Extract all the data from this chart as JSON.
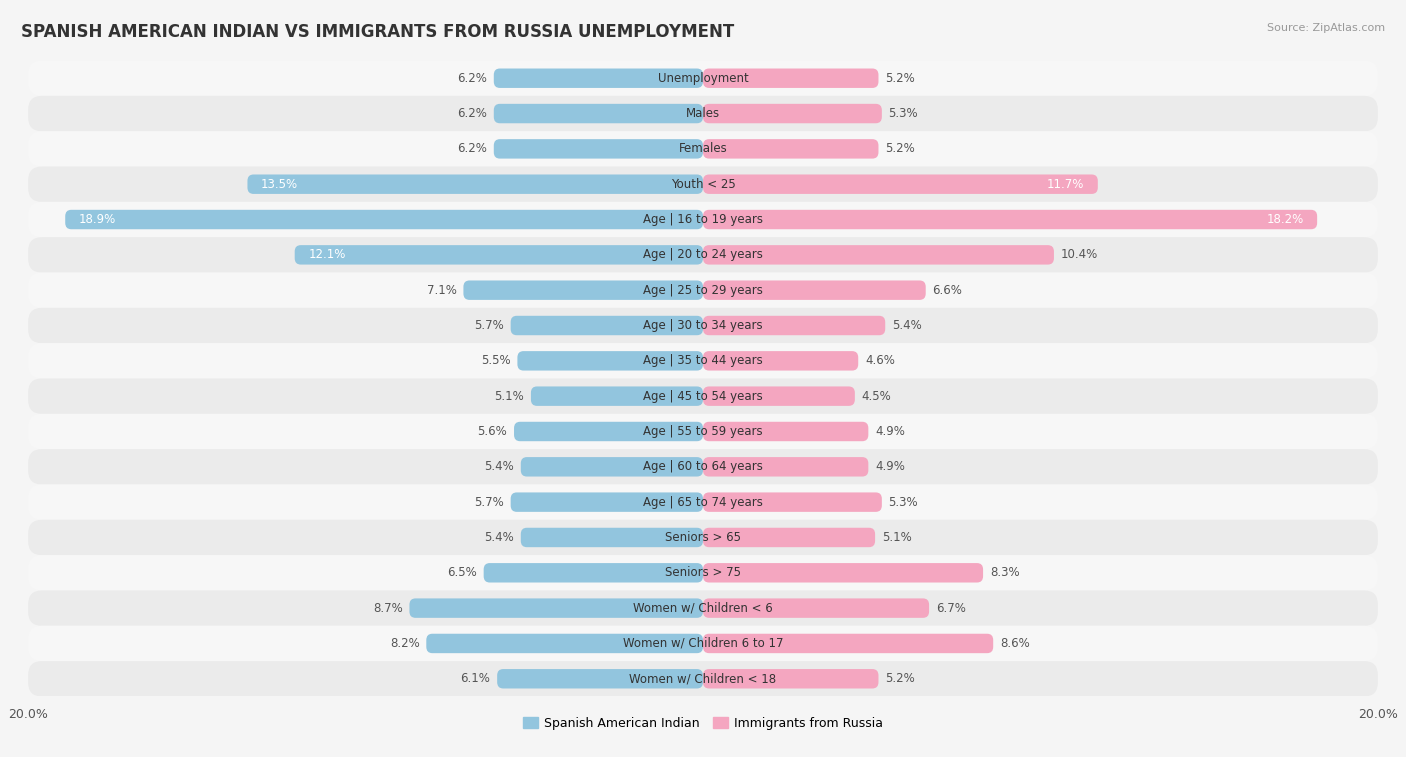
{
  "title": "SPANISH AMERICAN INDIAN VS IMMIGRANTS FROM RUSSIA UNEMPLOYMENT",
  "source": "Source: ZipAtlas.com",
  "categories": [
    "Unemployment",
    "Males",
    "Females",
    "Youth < 25",
    "Age | 16 to 19 years",
    "Age | 20 to 24 years",
    "Age | 25 to 29 years",
    "Age | 30 to 34 years",
    "Age | 35 to 44 years",
    "Age | 45 to 54 years",
    "Age | 55 to 59 years",
    "Age | 60 to 64 years",
    "Age | 65 to 74 years",
    "Seniors > 65",
    "Seniors > 75",
    "Women w/ Children < 6",
    "Women w/ Children 6 to 17",
    "Women w/ Children < 18"
  ],
  "left_values": [
    6.2,
    6.2,
    6.2,
    13.5,
    18.9,
    12.1,
    7.1,
    5.7,
    5.5,
    5.1,
    5.6,
    5.4,
    5.7,
    5.4,
    6.5,
    8.7,
    8.2,
    6.1
  ],
  "right_values": [
    5.2,
    5.3,
    5.2,
    11.7,
    18.2,
    10.4,
    6.6,
    5.4,
    4.6,
    4.5,
    4.9,
    4.9,
    5.3,
    5.1,
    8.3,
    6.7,
    8.6,
    5.2
  ],
  "left_color": "#92c5de",
  "right_color": "#f4a6c0",
  "left_color_dark": "#5a9dc0",
  "right_color_dark": "#e8698a",
  "left_label": "Spanish American Indian",
  "right_label": "Immigrants from Russia",
  "max_val": 20.0,
  "bar_height": 0.55,
  "row_bg_light": "#f7f7f7",
  "row_bg_dark": "#ebebeb",
  "fig_bg": "#f5f5f5",
  "title_fontsize": 12,
  "label_fontsize": 8.5,
  "value_fontsize": 8.5,
  "axis_fontsize": 9,
  "white_threshold": 11.0
}
